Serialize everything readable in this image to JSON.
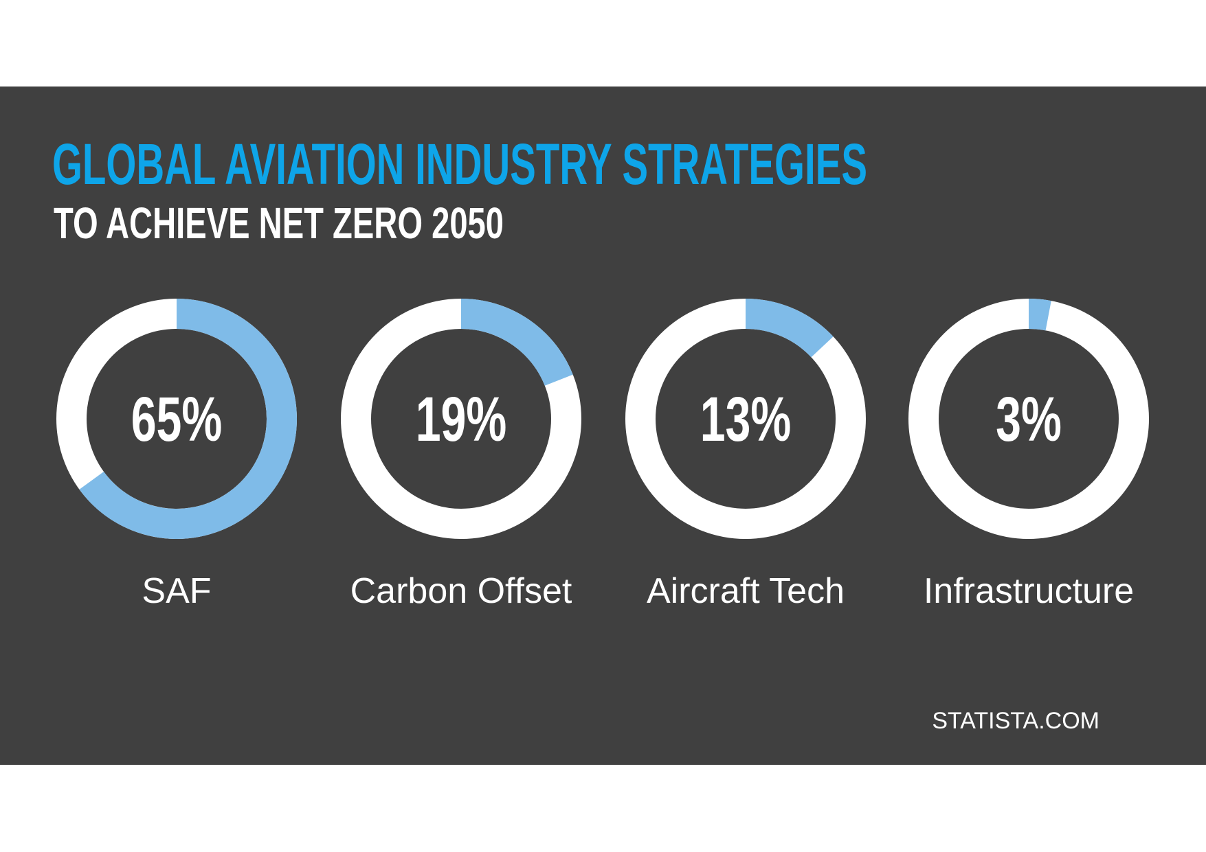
{
  "title": "GLOBAL AVIATION INDUSTRY STRATEGIES",
  "subtitle": "TO ACHIEVE NET ZERO 2050",
  "source": "STATISTA.COM",
  "chart_data": [
    {
      "type": "donut",
      "title": "SAF",
      "values": [
        65
      ],
      "value_labels": [
        "65%"
      ],
      "color": "#7fbbe8"
    },
    {
      "type": "donut",
      "title": "Carbon Offset",
      "values": [
        19
      ],
      "value_labels": [
        "19%"
      ],
      "color": "#7fbbe8"
    },
    {
      "type": "donut",
      "title": "Aircraft Tech",
      "values": [
        13
      ],
      "value_labels": [
        "13%"
      ],
      "color": "#7fbbe8"
    },
    {
      "type": "donut",
      "title": "Infrastructure",
      "values": [
        3
      ],
      "value_labels": [
        "3%"
      ],
      "color": "#7fbbe8"
    }
  ]
}
